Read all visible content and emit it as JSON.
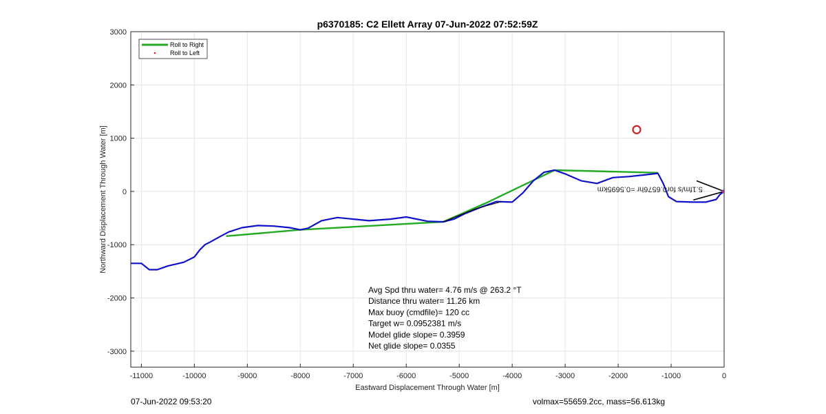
{
  "chart_data": {
    "type": "line",
    "title": "p6370185: C2 Ellett Array 07-Jun-2022 07:52:59Z",
    "xlabel": "Eastward Displacement Through Water [m]",
    "ylabel": "Northward Displacement Through Water [m]",
    "xlim": [
      -11200,
      0
    ],
    "ylim": [
      -3300,
      3000
    ],
    "xticks": [
      -11000,
      -10000,
      -9000,
      -8000,
      -7000,
      -6000,
      -5000,
      -4000,
      -3000,
      -2000,
      -1000,
      0
    ],
    "xtick_labels": [
      "-11000",
      "-10000",
      "-9000",
      "-8000",
      "-7000",
      "-6000",
      "-5000",
      "-4000",
      "-3000",
      "-2000",
      "-1000",
      "0"
    ],
    "yticks": [
      -3000,
      -2000,
      -1000,
      0,
      1000,
      2000,
      3000
    ],
    "ytick_labels": [
      "-3000",
      "-2000",
      "-1000",
      "0",
      "1000",
      "2000",
      "3000"
    ],
    "grid": true,
    "legend": {
      "placement": "top-left",
      "entries": [
        "Roll to Right",
        "Roll to Left"
      ]
    },
    "series": [
      {
        "name": "Roll to Right",
        "color": "#22aa22",
        "x": [
          -9400,
          -8000,
          -5300,
          -4500,
          -3200,
          -1250
        ],
        "y": [
          -840,
          -720,
          -570,
          -220,
          400,
          350
        ]
      },
      {
        "name": "Roll to Left",
        "color": "#dd2222",
        "x": [],
        "y": []
      },
      {
        "name": "",
        "color": "#1010c8",
        "x": [
          0,
          -80,
          -150,
          -350,
          -600,
          -900,
          -1050,
          -1150,
          -1250,
          -1500,
          -1800,
          -2100,
          -2400,
          -2700,
          -3000,
          -3200,
          -3400,
          -3600,
          -3800,
          -4000,
          -4300,
          -4600,
          -4900,
          -5100,
          -5300,
          -5600,
          -6000,
          -6300,
          -6700,
          -7000,
          -7300,
          -7600,
          -7850,
          -8000,
          -8200,
          -8500,
          -8800,
          -9100,
          -9350,
          -9500,
          -9700,
          -9800,
          -9900,
          -10000,
          -10200,
          -10500,
          -10700,
          -10850,
          -11000,
          -11200
        ],
        "y": [
          0,
          -60,
          -150,
          -200,
          -200,
          -190,
          -100,
          150,
          340,
          310,
          280,
          260,
          150,
          200,
          330,
          400,
          360,
          200,
          -30,
          -200,
          -190,
          -300,
          -420,
          -520,
          -570,
          -560,
          -480,
          -520,
          -550,
          -520,
          -490,
          -550,
          -690,
          -720,
          -680,
          -650,
          -640,
          -680,
          -760,
          -840,
          -950,
          -1000,
          -1100,
          -1230,
          -1330,
          -1400,
          -1470,
          -1470,
          -1350,
          -1350
        ]
      },
      {
        "name": "",
        "color": "#000000",
        "x": [
          -5300,
          -4700,
          -4200
        ],
        "y": [
          -570,
          -330,
          -190
        ]
      }
    ],
    "annotations": {
      "stats": [
        "Avg Spd thru water=  4.76 m/s @ 263.2 °T",
        "Distance thru water= 11.26 km",
        "Max buoy (cmdfile)= 120 cc",
        "Target w= 0.0952381 m/s",
        "Model glide slope= 0.3959",
        "Net glide slope= 0.0355"
      ],
      "flipped_label": "5.1fm/s for0.6576hr =0.5695km",
      "target_marker": {
        "x": -1650,
        "y": 1160
      }
    }
  },
  "footer": {
    "left": "07-Jun-2022 09:53:20",
    "right": "volmax=55659.2cc, mass=56.613kg"
  },
  "colors": {
    "roll_right": "#22aa22",
    "roll_left": "#dd2222",
    "track": "#1010c8",
    "target": "#cc2222",
    "arrow": "#000000",
    "grid": "#e6e6e6",
    "axis": "#262626"
  }
}
